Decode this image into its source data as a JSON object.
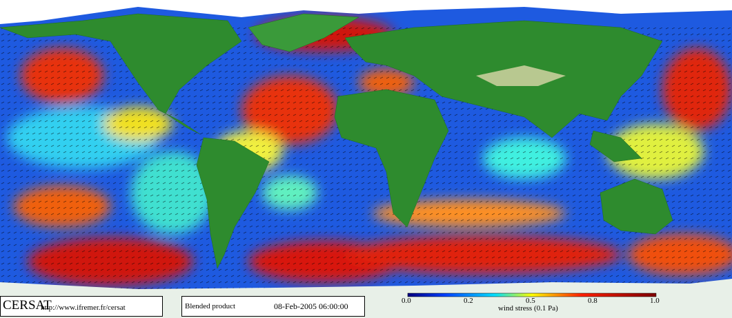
{
  "footer": {
    "logo": "CERSAT",
    "url": "http://www.ifremer.fr/cersat",
    "product": "Blended product",
    "datetime": "08-Feb-2005 06:00:00",
    "colorbar": {
      "tick_labels": [
        "0.0",
        "0.2",
        "0.5",
        "0.8",
        "1.0"
      ],
      "title": "wind stress (0.1 Pa)"
    }
  }
}
